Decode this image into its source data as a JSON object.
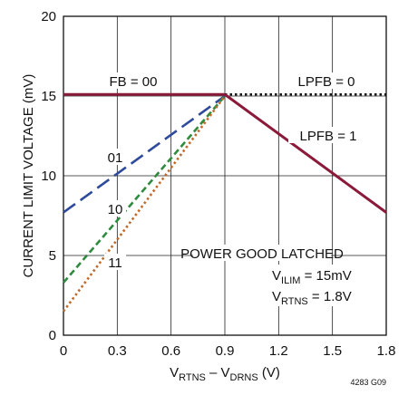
{
  "chart_data": {
    "type": "line",
    "xlabel": "V_RTNS – V_DRNS (V)",
    "ylabel": "CURRENT LIMIT VOLTAGE (mV)",
    "xlim": [
      0,
      1.8
    ],
    "ylim": [
      0,
      20
    ],
    "x_ticks": [
      "0",
      "0.3",
      "0.6",
      "0.9",
      "1.2",
      "1.5",
      "1.8"
    ],
    "y_ticks": [
      "0",
      "5",
      "10",
      "15",
      "20"
    ],
    "grid": true,
    "series": [
      {
        "name": "FB = 00",
        "color": "#8b1a3a",
        "style": "solid",
        "x": [
          0,
          0.9
        ],
        "y": [
          15.1,
          15.1
        ]
      },
      {
        "name": "01",
        "color": "#2e4a9a",
        "style": "longdash",
        "x": [
          0,
          0.9
        ],
        "y": [
          7.7,
          15.0
        ]
      },
      {
        "name": "10",
        "color": "#2e8b3e",
        "style": "dash",
        "x": [
          0,
          0.9
        ],
        "y": [
          3.3,
          15.0
        ]
      },
      {
        "name": "11",
        "color": "#c26a2a",
        "style": "dot",
        "x": [
          0,
          0.9
        ],
        "y": [
          1.5,
          15.0
        ]
      },
      {
        "name": "LPFB = 0",
        "color": "#111111",
        "style": "dot",
        "x": [
          0.9,
          1.8
        ],
        "y": [
          15.1,
          15.1
        ]
      },
      {
        "name": "LPFB = 1",
        "color": "#8b1a3a",
        "style": "solid",
        "x": [
          0.9,
          1.8
        ],
        "y": [
          15.1,
          7.7
        ]
      }
    ],
    "annotations": {
      "fb00": "FB = 00",
      "s01": "01",
      "s10": "10",
      "s11": "11",
      "lpfb0": "LPFB = 0",
      "lpfb1": "LPFB = 1",
      "pg1": "POWER GOOD LATCHED",
      "pg2_main": "V",
      "pg2_sub": "ILIM",
      "pg2_rest": " = 15mV",
      "pg3_main": "V",
      "pg3_sub": "RTNS",
      "pg3_rest": " = 1.8V"
    },
    "xlabel_parts": {
      "v1": "V",
      "sub1": "RTNS",
      "mid": " – V",
      "sub2": "DRNS",
      "end": " (V)"
    }
  },
  "figure_id": "4283 G09"
}
